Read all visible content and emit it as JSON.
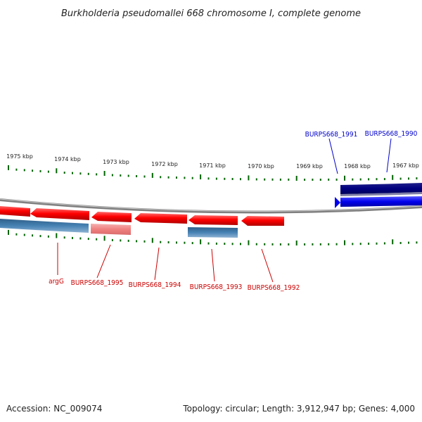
{
  "title": "Burkholderia pseudomallei 668 chromosome I, complete genome",
  "footer": {
    "accession": "Accession: NC_009074",
    "topology": "Topology: circular; Length: 3,912,947 bp; Genes: 4,000"
  },
  "colors": {
    "forward_strand": "#0000ee",
    "forward_strand_dark": "#000080",
    "reverse_strand": "#ff0000",
    "reverse_strand_light": "#f08080",
    "rna": "#4682b4",
    "ticks": "#006400",
    "backbone": "#808080"
  },
  "kbp_ticks": [
    "1975 kbp",
    "1974 kbp",
    "1973 kbp",
    "1972 kbp",
    "1971 kbp",
    "1970 kbp",
    "1969 kbp",
    "1968 kbp",
    "1967 kbp"
  ],
  "gene_labels": {
    "BURPS668_1991": "BURPS668_1991",
    "BURPS668_1990": "BURPS668_1990",
    "argG": "argG",
    "BURPS668_1995": "BURPS668_1995",
    "BURPS668_1994": "BURPS668_1994",
    "BURPS668_1993": "BURPS668_1993",
    "BURPS668_1992": "BURPS668_1992"
  }
}
